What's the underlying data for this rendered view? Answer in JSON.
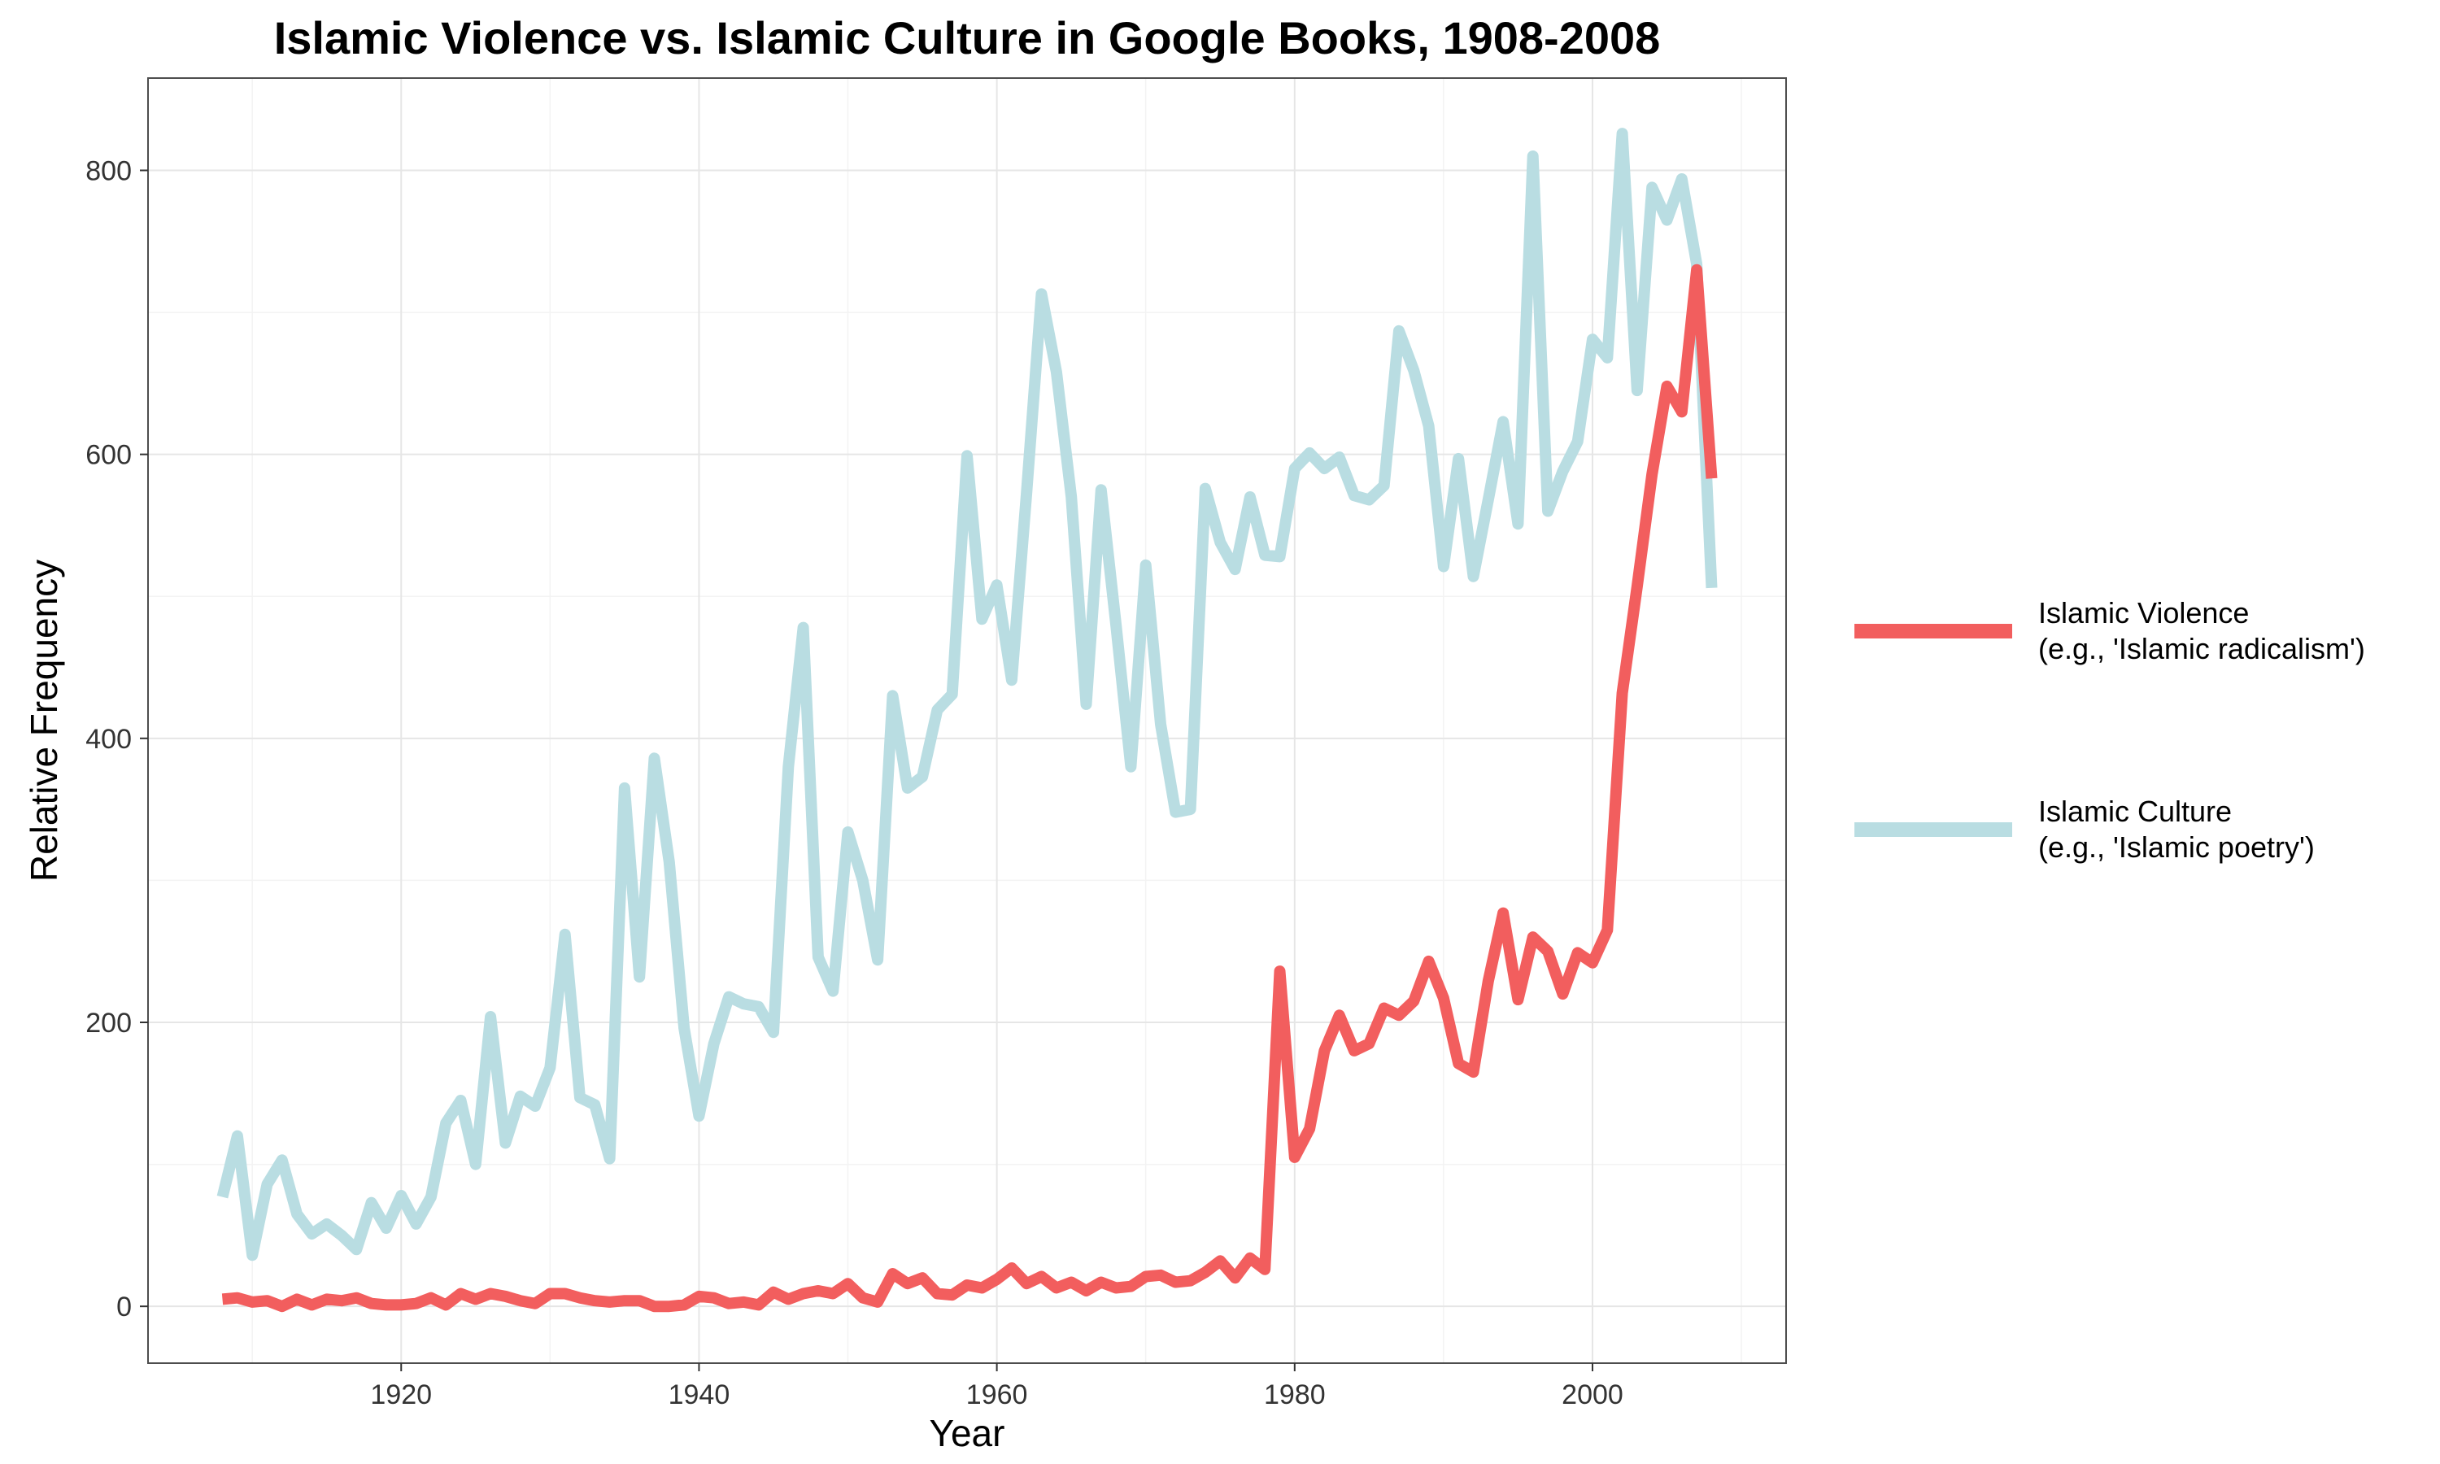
{
  "chart_data": {
    "type": "line",
    "title": "Islamic Violence vs. Islamic Culture in Google Books, 1908-2008",
    "xlabel": "Year",
    "ylabel": "Relative Frequency",
    "xlim": [
      1908,
      2008
    ],
    "ylim": [
      0,
      825
    ],
    "xticks": [
      1920,
      1940,
      1960,
      1980,
      2000
    ],
    "yticks": [
      0,
      200,
      400,
      600,
      800
    ],
    "grid": true,
    "legend_position": "right",
    "x": [
      1908,
      1909,
      1910,
      1911,
      1912,
      1913,
      1914,
      1915,
      1916,
      1917,
      1918,
      1919,
      1920,
      1921,
      1922,
      1923,
      1924,
      1925,
      1926,
      1927,
      1928,
      1929,
      1930,
      1931,
      1932,
      1933,
      1934,
      1935,
      1936,
      1937,
      1938,
      1939,
      1940,
      1941,
      1942,
      1943,
      1944,
      1945,
      1946,
      1947,
      1948,
      1949,
      1950,
      1951,
      1952,
      1953,
      1954,
      1955,
      1956,
      1957,
      1958,
      1959,
      1960,
      1961,
      1962,
      1963,
      1964,
      1965,
      1966,
      1967,
      1968,
      1969,
      1970,
      1971,
      1972,
      1973,
      1974,
      1975,
      1976,
      1977,
      1978,
      1979,
      1980,
      1981,
      1982,
      1983,
      1984,
      1985,
      1986,
      1987,
      1988,
      1989,
      1990,
      1991,
      1992,
      1993,
      1994,
      1995,
      1996,
      1997,
      1998,
      1999,
      2000,
      2001,
      2002,
      2003,
      2004,
      2005,
      2006,
      2007,
      2008
    ],
    "series": [
      {
        "name": "Islamic Violence\n(e.g., 'Islamic radicalism')",
        "label_lines": [
          "Islamic Violence",
          "(e.g., 'Islamic radicalism')"
        ],
        "color": "#f25e5e",
        "values": [
          5,
          6,
          3,
          4,
          0,
          5,
          1,
          5,
          4,
          6,
          2,
          1,
          1,
          2,
          6,
          1,
          9,
          5,
          9,
          7,
          4,
          2,
          9,
          9,
          6,
          4,
          3,
          4,
          4,
          0,
          0,
          1,
          7,
          6,
          2,
          3,
          1,
          10,
          5,
          9,
          11,
          9,
          16,
          6,
          3,
          23,
          16,
          20,
          9,
          8,
          15,
          13,
          19,
          27,
          16,
          21,
          13,
          17,
          11,
          17,
          13,
          14,
          21,
          22,
          17,
          18,
          24,
          32,
          20,
          34,
          26,
          236,
          105,
          125,
          180,
          205,
          180,
          185,
          210,
          205,
          215,
          243,
          217,
          171,
          165,
          229,
          277,
          216,
          260,
          250,
          220,
          249,
          242,
          265,
          432,
          507,
          586,
          648,
          630,
          730,
          583
        ]
      },
      {
        "name": "Islamic Culture\n(e.g., 'Islamic poetry')",
        "label_lines": [
          "Islamic Culture",
          "(e.g., 'Islamic poetry')"
        ],
        "color": "#b9dde2",
        "values": [
          77,
          120,
          36,
          86,
          103,
          65,
          51,
          58,
          50,
          40,
          73,
          55,
          78,
          58,
          77,
          129,
          145,
          100,
          204,
          115,
          148,
          141,
          168,
          262,
          147,
          142,
          104,
          365,
          232,
          386,
          313,
          196,
          134,
          185,
          218,
          213,
          211,
          193,
          380,
          478,
          246,
          222,
          334,
          300,
          244,
          430,
          365,
          373,
          420,
          431,
          599,
          484,
          508,
          441,
          573,
          713,
          658,
          570,
          424,
          575,
          480,
          380,
          522,
          410,
          348,
          350,
          576,
          538,
          519,
          570,
          529,
          528,
          590,
          601,
          590,
          598,
          571,
          568,
          578,
          687,
          659,
          620,
          521,
          597,
          514,
          568,
          623,
          551,
          810,
          560,
          588,
          609,
          681,
          668,
          826,
          645,
          788,
          765,
          794,
          734,
          506
        ]
      }
    ]
  }
}
